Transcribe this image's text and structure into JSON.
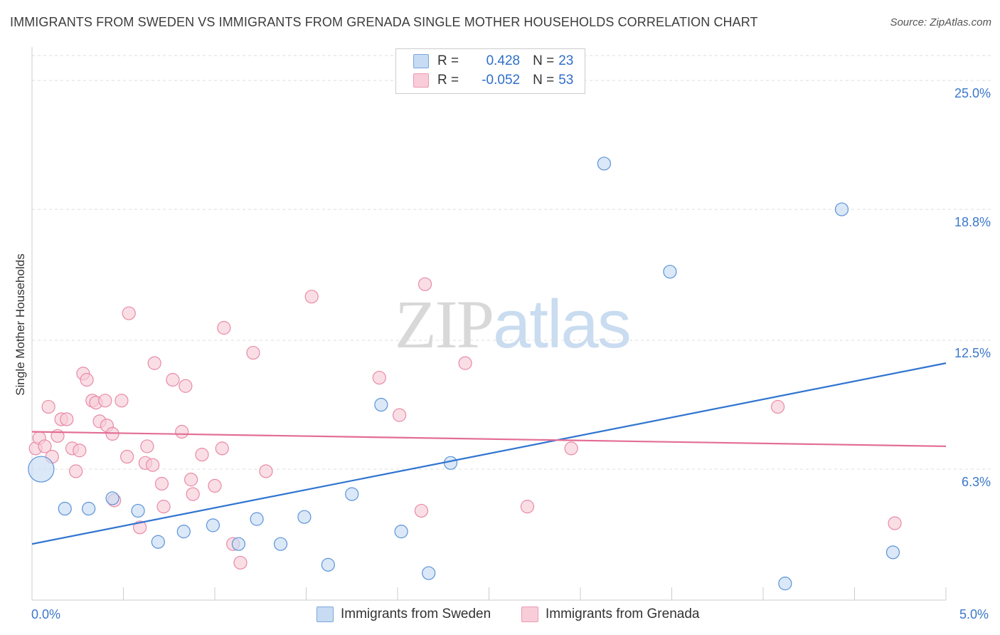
{
  "title": "IMMIGRANTS FROM SWEDEN VS IMMIGRANTS FROM GRENADA SINGLE MOTHER HOUSEHOLDS CORRELATION CHART",
  "source": "Source: ZipAtlas.com",
  "watermark": {
    "zip": "ZIP",
    "atlas": "atlas"
  },
  "legend": {
    "sweden": {
      "r_label": "R =",
      "r_value": "0.428",
      "n_label": "N =",
      "n_value": "23",
      "color": "#aac8f0"
    },
    "grenada": {
      "r_label": "R =",
      "r_value": "-0.052",
      "n_label": "N =",
      "n_value": "53",
      "color": "#f5b8ca"
    }
  },
  "bottom_legend": {
    "sweden": "Immigrants from Sweden",
    "grenada": "Immigrants from Grenada"
  },
  "chart_data": {
    "type": "scatter",
    "title": "IMMIGRANTS FROM SWEDEN VS IMMIGRANTS FROM GRENADA SINGLE MOTHER HOUSEHOLDS CORRELATION CHART",
    "xlabel": "",
    "ylabel": "Single Mother Households",
    "xlim": [
      0,
      5
    ],
    "ylim": [
      0,
      26.2
    ],
    "x_tick_labels": [
      "0.0%",
      "5.0%"
    ],
    "y_ticks": [
      6.3,
      12.5,
      18.8,
      25.0
    ],
    "y_tick_labels": [
      "6.3%",
      "12.5%",
      "18.8%",
      "25.0%"
    ],
    "grid": true,
    "colors": {
      "sweden": "#5b93d8",
      "sweden_fill": "#c7dbf3",
      "grenada": "#e88aa6",
      "grenada_fill": "#f8cdd9",
      "sweden_line": "#2f74d0",
      "grenada_line": "#e36d95"
    },
    "series": [
      {
        "name": "Immigrants from Sweden",
        "key": "sweden",
        "trend": [
          [
            0.0,
            2.7
          ],
          [
            5.0,
            11.4
          ]
        ],
        "points": [
          [
            0.05,
            6.3,
            "large"
          ],
          [
            0.18,
            4.4
          ],
          [
            0.31,
            4.4
          ],
          [
            0.44,
            4.9
          ],
          [
            0.58,
            4.3
          ],
          [
            0.69,
            2.8
          ],
          [
            0.83,
            3.3
          ],
          [
            0.99,
            3.6
          ],
          [
            1.13,
            2.7
          ],
          [
            1.23,
            3.9
          ],
          [
            1.36,
            2.7
          ],
          [
            1.49,
            4.0
          ],
          [
            1.62,
            1.7
          ],
          [
            1.75,
            5.1
          ],
          [
            1.91,
            9.4
          ],
          [
            2.02,
            3.3
          ],
          [
            2.17,
            1.3
          ],
          [
            2.29,
            6.6
          ],
          [
            3.13,
            21.0
          ],
          [
            3.49,
            15.8
          ],
          [
            4.12,
            0.8
          ],
          [
            4.43,
            18.8
          ],
          [
            4.71,
            2.3
          ]
        ]
      },
      {
        "name": "Immigrants from Grenada",
        "key": "grenada",
        "trend": [
          [
            0.0,
            8.1
          ],
          [
            5.0,
            7.4
          ]
        ],
        "points": [
          [
            0.02,
            7.3
          ],
          [
            0.04,
            7.8
          ],
          [
            0.07,
            7.4
          ],
          [
            0.09,
            9.3
          ],
          [
            0.11,
            6.9
          ],
          [
            0.14,
            7.9
          ],
          [
            0.16,
            8.7
          ],
          [
            0.19,
            8.7
          ],
          [
            0.22,
            7.3
          ],
          [
            0.24,
            6.2
          ],
          [
            0.26,
            7.2
          ],
          [
            0.28,
            10.9
          ],
          [
            0.3,
            10.6
          ],
          [
            0.33,
            9.6
          ],
          [
            0.35,
            9.5
          ],
          [
            0.37,
            8.6
          ],
          [
            0.4,
            9.6
          ],
          [
            0.41,
            8.4
          ],
          [
            0.44,
            8.0
          ],
          [
            0.45,
            4.8
          ],
          [
            0.49,
            9.6
          ],
          [
            0.52,
            6.9
          ],
          [
            0.53,
            13.8
          ],
          [
            0.59,
            3.5
          ],
          [
            0.62,
            6.6
          ],
          [
            0.63,
            7.4
          ],
          [
            0.66,
            6.5
          ],
          [
            0.67,
            11.4
          ],
          [
            0.71,
            5.6
          ],
          [
            0.72,
            4.5
          ],
          [
            0.77,
            10.6
          ],
          [
            0.82,
            8.1
          ],
          [
            0.84,
            10.3
          ],
          [
            0.87,
            5.8
          ],
          [
            0.88,
            5.1
          ],
          [
            0.93,
            7.0
          ],
          [
            1.0,
            5.5
          ],
          [
            1.04,
            7.3
          ],
          [
            1.05,
            13.1
          ],
          [
            1.1,
            2.7
          ],
          [
            1.14,
            1.8
          ],
          [
            1.21,
            11.9
          ],
          [
            1.28,
            6.2
          ],
          [
            1.53,
            14.6
          ],
          [
            1.9,
            10.7
          ],
          [
            2.01,
            8.9
          ],
          [
            2.13,
            4.3
          ],
          [
            2.15,
            15.2
          ],
          [
            2.37,
            11.4
          ],
          [
            2.71,
            4.5
          ],
          [
            2.95,
            7.3
          ],
          [
            4.08,
            9.3
          ],
          [
            4.72,
            3.7
          ]
        ]
      }
    ]
  }
}
